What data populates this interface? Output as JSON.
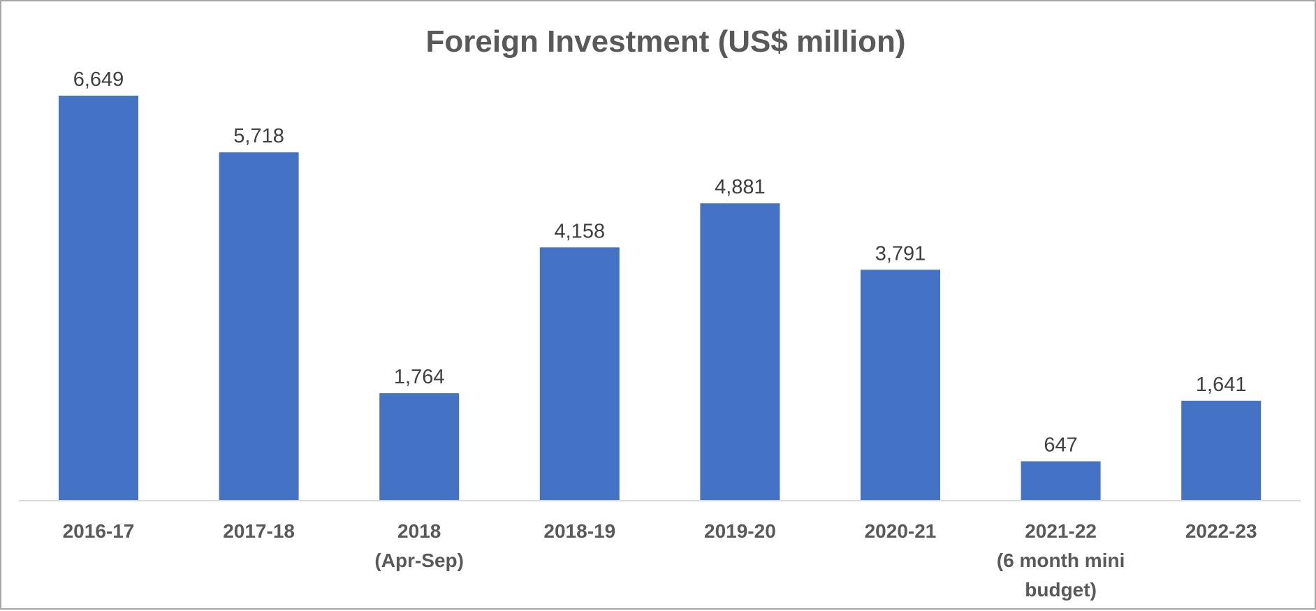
{
  "chart_data": {
    "type": "bar",
    "title": "Foreign Investment (US$ million)",
    "categories": [
      [
        "2016-17"
      ],
      [
        "2017-18"
      ],
      [
        "2018",
        "(Apr-Sep)"
      ],
      [
        "2018-19"
      ],
      [
        "2019-20"
      ],
      [
        "2020-21"
      ],
      [
        "2021-22",
        "(6 month mini",
        "budget)"
      ],
      [
        "2022-23"
      ]
    ],
    "values": [
      6649,
      5718,
      1764,
      4158,
      4881,
      3791,
      647,
      1641
    ],
    "value_labels": [
      "6,649",
      "5,718",
      "1,764",
      "4,158",
      "4,881",
      "3,791",
      "647",
      "1,641"
    ],
    "xlabel": "",
    "ylabel": "",
    "grid": false,
    "legend": "none",
    "bar_color": "#4472C4",
    "axis_color": "#d9d9d9",
    "text_color": "#595959",
    "label_color": "#404040"
  }
}
